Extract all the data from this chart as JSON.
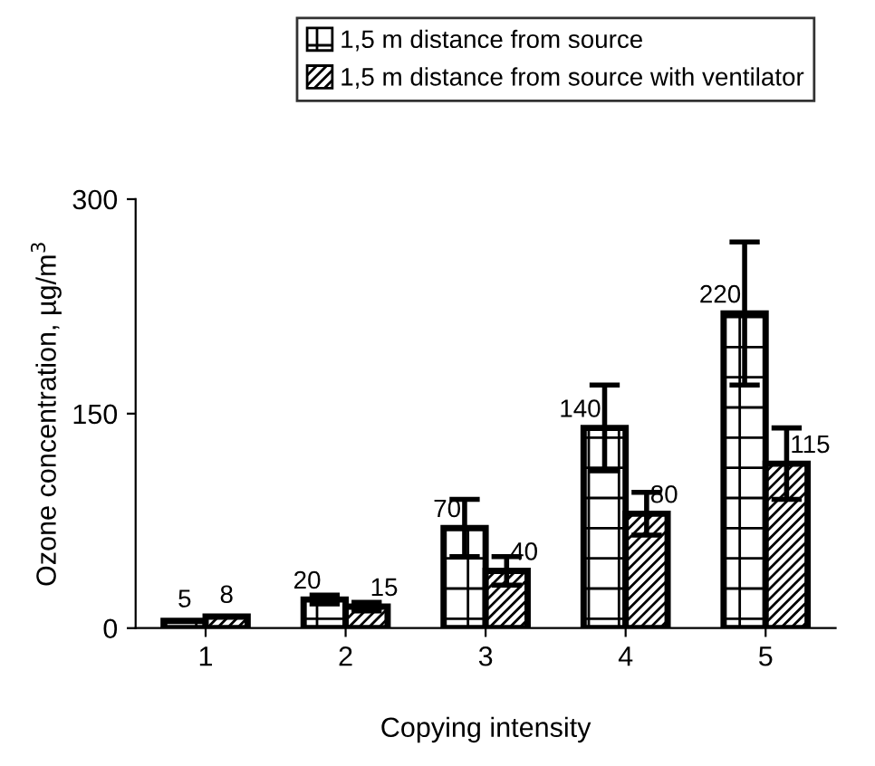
{
  "chart_data": {
    "type": "bar",
    "xlabel": "Copying intensity",
    "ylabel": "Ozone concentration, µg/m$^{3}$",
    "categories": [
      "1",
      "2",
      "3",
      "4",
      "5"
    ],
    "series": [
      {
        "name": "1,5 m distance from source",
        "color": "#000000",
        "values": [
          5,
          20,
          70,
          140,
          220
        ],
        "errors": [
          null,
          3,
          20,
          30,
          50
        ]
      },
      {
        "name": "1,5 m distance from source with ventilator",
        "color": "#000000",
        "values": [
          8,
          15,
          40,
          80,
          115
        ],
        "errors": [
          null,
          3,
          10,
          15,
          25
        ]
      }
    ],
    "ylim": [
      0,
      300
    ],
    "yticks": [
      0,
      150,
      300
    ],
    "grid": false,
    "legend": "top",
    "data_labels": true
  }
}
